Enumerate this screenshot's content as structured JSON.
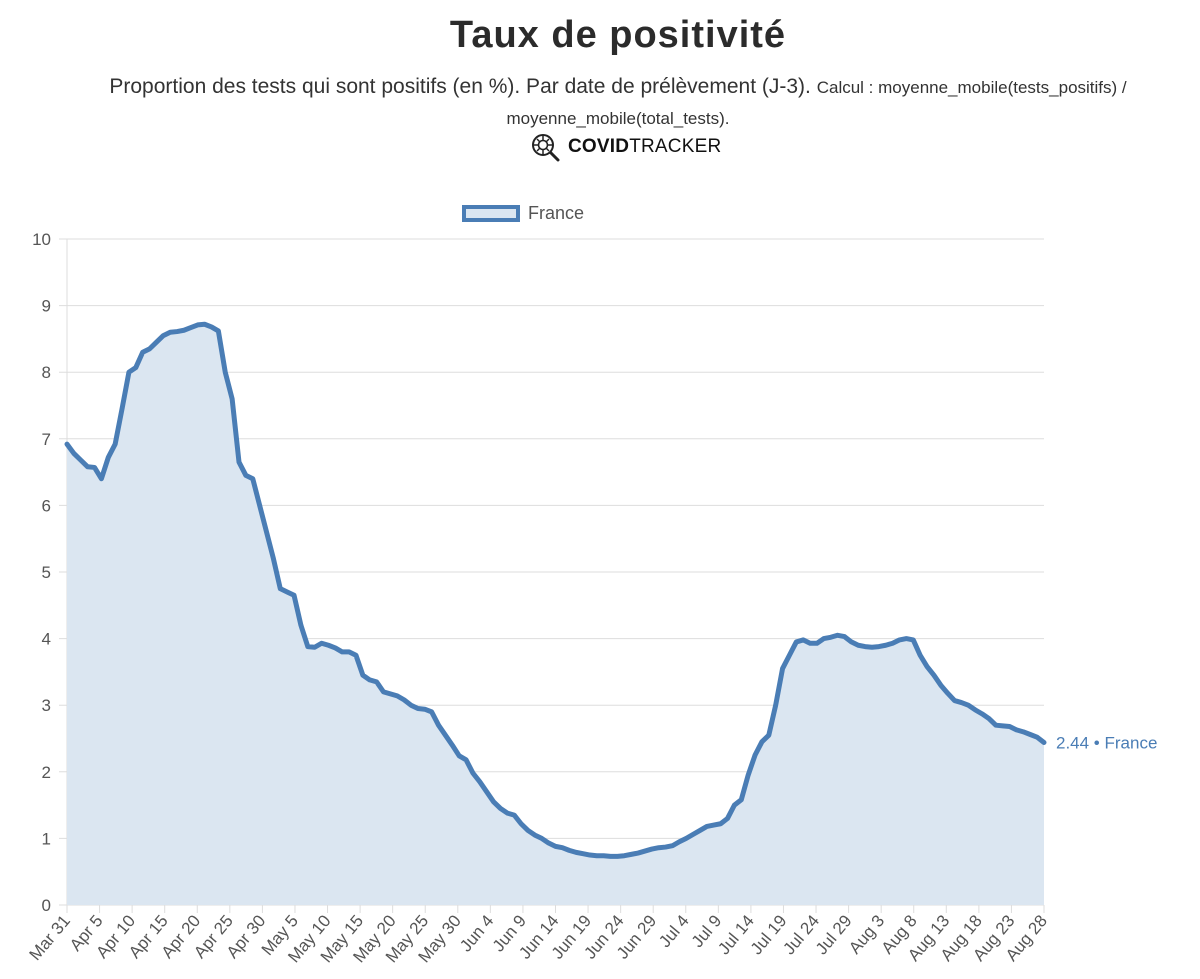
{
  "header": {
    "title": "Taux de positivité",
    "subtitle_main": "Proportion des tests qui sont positifs (en %). Par date de prélèvement (J-3).",
    "subtitle_calc": "Calcul : moyenne_mobile(tests_positifs) / moyenne_mobile(total_tests).",
    "brand_bold": "COVID",
    "brand_light": "TRACKER"
  },
  "colors": {
    "line": "#4a7db5",
    "fill": "#dbe6f1",
    "grid": "#dddddd",
    "label": "#4a7db5"
  },
  "chart_data": {
    "type": "area",
    "ylim": [
      0,
      10
    ],
    "yticks": [
      0,
      1,
      2,
      3,
      4,
      5,
      6,
      7,
      8,
      9,
      10
    ],
    "grid": true,
    "legend_position": "top",
    "xlabels": [
      "Mar 31",
      "Apr 5",
      "Apr 10",
      "Apr 15",
      "Apr 20",
      "Apr 25",
      "Apr 30",
      "May 5",
      "May 10",
      "May 15",
      "May 20",
      "May 25",
      "May 30",
      "Jun 4",
      "Jun 9",
      "Jun 14",
      "Jun 19",
      "Jun 24",
      "Jun 29",
      "Jul 4",
      "Jul 9",
      "Jul 14",
      "Jul 19",
      "Jul 24",
      "Jul 29",
      "Aug 3",
      "Aug 8",
      "Aug 13",
      "Aug 18",
      "Aug 23",
      "Aug 28"
    ],
    "series": [
      {
        "name": "France",
        "end_label": "2.44 • France",
        "values": [
          6.92,
          6.78,
          6.68,
          6.58,
          6.57,
          6.4,
          6.72,
          6.92,
          7.45,
          8.0,
          8.07,
          8.3,
          8.35,
          8.45,
          8.55,
          8.6,
          8.61,
          8.63,
          8.67,
          8.71,
          8.72,
          8.68,
          8.62,
          8.0,
          7.6,
          6.65,
          6.45,
          6.4,
          6.0,
          5.6,
          5.2,
          4.75,
          4.7,
          4.65,
          4.2,
          3.88,
          3.87,
          3.93,
          3.9,
          3.86,
          3.8,
          3.8,
          3.75,
          3.45,
          3.38,
          3.35,
          3.2,
          3.17,
          3.14,
          3.08,
          3.0,
          2.95,
          2.94,
          2.9,
          2.7,
          2.55,
          2.4,
          2.24,
          2.18,
          1.98,
          1.85,
          1.7,
          1.55,
          1.45,
          1.38,
          1.35,
          1.22,
          1.12,
          1.05,
          1.0,
          0.93,
          0.88,
          0.86,
          0.82,
          0.79,
          0.77,
          0.75,
          0.74,
          0.74,
          0.73,
          0.73,
          0.74,
          0.76,
          0.78,
          0.81,
          0.84,
          0.86,
          0.87,
          0.89,
          0.95,
          1.0,
          1.06,
          1.12,
          1.18,
          1.2,
          1.22,
          1.3,
          1.5,
          1.58,
          1.95,
          2.25,
          2.45,
          2.55,
          3.0,
          3.55,
          3.75,
          3.95,
          3.98,
          3.93,
          3.93,
          4.0,
          4.02,
          4.05,
          4.03,
          3.95,
          3.9,
          3.88,
          3.87,
          3.88,
          3.9,
          3.93,
          3.98,
          4.0,
          3.98,
          3.75,
          3.58,
          3.45,
          3.3,
          3.18,
          3.07,
          3.04,
          3.0,
          2.93,
          2.87,
          2.8,
          2.7,
          2.69,
          2.68,
          2.63,
          2.6,
          2.56,
          2.52,
          2.44
        ]
      }
    ]
  }
}
